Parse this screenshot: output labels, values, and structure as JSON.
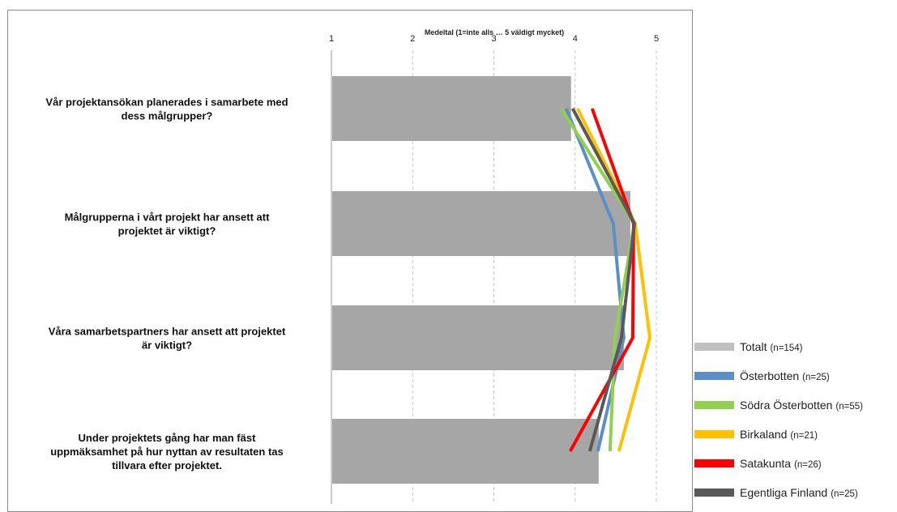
{
  "chart_data": {
    "type": "bar",
    "orientation": "horizontal",
    "title": "Medeltal   (1=inte alls  … 5 väldigt  mycket)",
    "xlim": [
      1,
      5
    ],
    "x_ticks": [
      "1",
      "2",
      "3",
      "4",
      "5"
    ],
    "x_tick_values": [
      1,
      2,
      3,
      4,
      5
    ],
    "grid": "vertical dashed",
    "legend_position": "right",
    "categories": [
      [
        "Vår projektansökan planerades i samarbete med",
        "dess målgrupper?"
      ],
      [
        "Målgrupperna i vårt projekt har ansett att",
        "projektet är viktigt?"
      ],
      [
        "Våra samarbetspartners har ansett att projektet",
        "är viktigt?"
      ],
      [
        "Under projektets gång har man fäst",
        "uppmäksamhet på hur nyttan av resultaten tas",
        "tillvara efter projektet."
      ]
    ],
    "bar_series": {
      "name": "Totalt",
      "n": "(n=154)",
      "color": "#a6a6a6",
      "values": [
        3.95,
        4.68,
        4.6,
        4.29
      ]
    },
    "line_series": [
      {
        "name": "Österbotten",
        "n": "(n=25)",
        "color": "#5b8fc7",
        "values": [
          3.89,
          4.47,
          4.6,
          4.28
        ]
      },
      {
        "name": "Södra Österbotten",
        "n": "(n=55)",
        "color": "#92d050",
        "values": [
          3.83,
          4.73,
          4.49,
          4.43
        ]
      },
      {
        "name": "Birkaland",
        "n": "(n=21)",
        "color": "#ffc000",
        "values": [
          4.03,
          4.74,
          4.92,
          4.54
        ]
      },
      {
        "name": "Satakunta",
        "n": "(n=26)",
        "color": "#ff0000",
        "values": [
          4.21,
          4.72,
          4.71,
          3.94
        ]
      },
      {
        "name": "Egentliga Finland",
        "n": "(n=25)",
        "color": "#595959",
        "values": [
          3.97,
          4.73,
          4.57,
          4.18
        ]
      }
    ]
  }
}
